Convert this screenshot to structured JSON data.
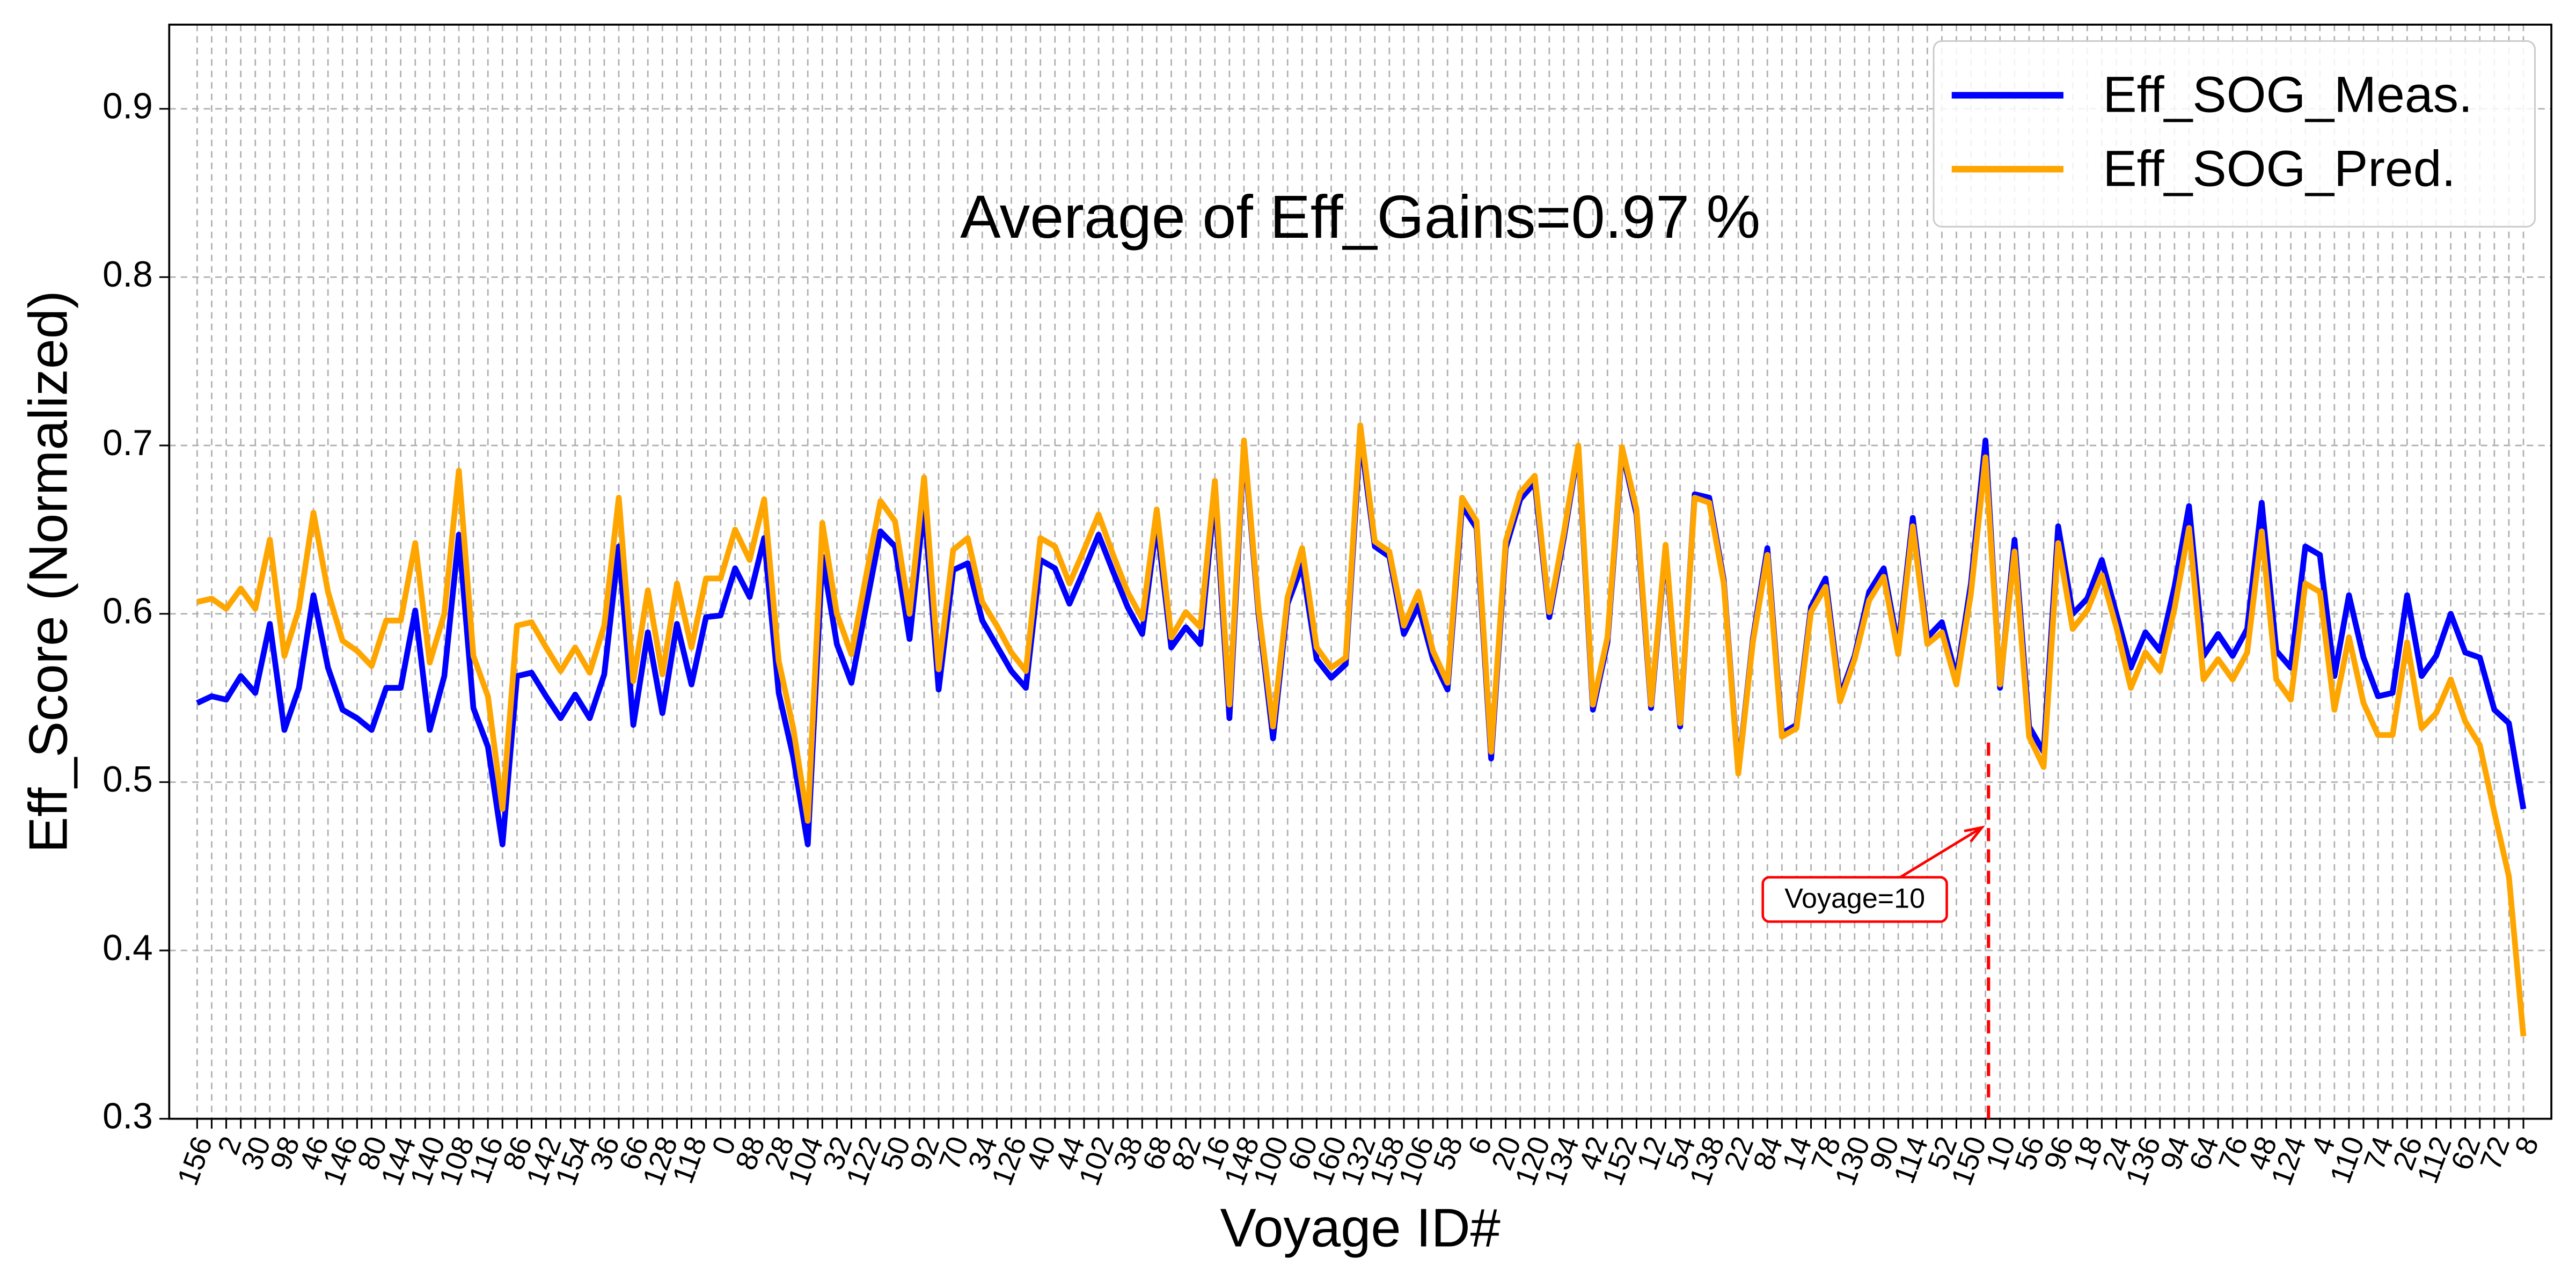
{
  "chart_data": {
    "type": "line",
    "title": "Average of Eff_Gains=0.97 %",
    "x_label": "Voyage ID#",
    "y_label": "Eff_Score (Normalized)",
    "categories": [
      "156",
      null,
      "2",
      null,
      "30",
      null,
      "98",
      null,
      "46",
      null,
      "146",
      null,
      "80",
      null,
      "144",
      null,
      "140",
      null,
      "108",
      null,
      "116",
      null,
      "86",
      null,
      "142",
      null,
      "154",
      null,
      "36",
      null,
      "66",
      null,
      "128",
      null,
      "118",
      null,
      "0",
      null,
      "88",
      null,
      "28",
      null,
      "104",
      null,
      "32",
      null,
      "122",
      null,
      "50",
      null,
      "92",
      null,
      "70",
      null,
      "34",
      null,
      "126",
      null,
      "40",
      null,
      "44",
      null,
      "102",
      null,
      "38",
      null,
      "68",
      null,
      "82",
      null,
      "16",
      null,
      "148",
      null,
      "100",
      null,
      "60",
      null,
      "160",
      null,
      "132",
      null,
      "158",
      null,
      "106",
      null,
      "58",
      null,
      "6",
      null,
      "20",
      null,
      "120",
      null,
      "134",
      null,
      "42",
      null,
      "152",
      null,
      "12",
      null,
      "54",
      null,
      "138",
      null,
      "22",
      null,
      "84",
      null,
      "14",
      null,
      "78",
      null,
      "130",
      null,
      "90",
      null,
      "114",
      null,
      "52",
      null,
      "150",
      null,
      "10",
      null,
      "56",
      null,
      "96",
      null,
      "18",
      null,
      "24",
      null,
      "136",
      null,
      "94",
      null,
      "64",
      null,
      "76",
      null,
      "48",
      null,
      "124",
      null,
      "4",
      null,
      "110",
      null,
      "74",
      null,
      "26",
      null,
      "112",
      null,
      "62",
      null,
      "72",
      null,
      "8"
    ],
    "series": [
      {
        "name": "Eff_SOG_Meas.",
        "color": "#0000ff",
        "values": [
          0.547,
          0.551,
          0.549,
          0.563,
          0.553,
          0.594,
          0.531,
          0.556,
          0.611,
          0.568,
          0.543,
          0.538,
          0.531,
          0.556,
          0.556,
          0.602,
          0.531,
          0.563,
          0.647,
          0.544,
          0.521,
          0.463,
          0.563,
          0.565,
          0.551,
          0.538,
          0.552,
          0.538,
          0.564,
          0.64,
          0.534,
          0.589,
          0.541,
          0.594,
          0.558,
          0.598,
          0.599,
          0.627,
          0.61,
          0.645,
          0.553,
          0.515,
          0.463,
          0.634,
          0.582,
          0.559,
          0.604,
          0.649,
          0.64,
          0.585,
          0.665,
          0.555,
          0.626,
          0.63,
          0.596,
          0.581,
          0.566,
          0.556,
          0.632,
          0.627,
          0.606,
          0.626,
          0.647,
          0.625,
          0.604,
          0.588,
          0.654,
          0.58,
          0.592,
          0.582,
          0.672,
          0.538,
          0.701,
          0.6,
          0.526,
          0.606,
          0.629,
          0.573,
          0.562,
          0.57,
          0.706,
          0.64,
          0.634,
          0.588,
          0.605,
          0.573,
          0.555,
          0.664,
          0.651,
          0.514,
          0.639,
          0.668,
          0.678,
          0.598,
          0.645,
          0.698,
          0.543,
          0.583,
          0.697,
          0.659,
          0.544,
          0.639,
          0.533,
          0.671,
          0.669,
          0.62,
          0.506,
          0.585,
          0.639,
          0.529,
          0.534,
          0.604,
          0.621,
          0.551,
          0.575,
          0.613,
          0.627,
          0.58,
          0.657,
          0.586,
          0.595,
          0.562,
          0.618,
          0.703,
          0.556,
          0.644,
          0.533,
          0.518,
          0.652,
          0.6,
          0.609,
          0.632,
          0.6,
          0.568,
          0.589,
          0.578,
          0.616,
          0.664,
          0.575,
          0.588,
          0.575,
          0.591,
          0.666,
          0.578,
          0.568,
          0.64,
          0.635,
          0.563,
          0.611,
          0.574,
          0.551,
          0.553,
          0.611,
          0.563,
          0.575,
          0.6,
          0.577,
          0.574,
          0.543,
          0.535,
          0.484
        ]
      },
      {
        "name": "Eff_SOG_Pred.",
        "color": "#ffa500",
        "values": [
          0.607,
          0.609,
          0.603,
          0.615,
          0.603,
          0.644,
          0.575,
          0.603,
          0.66,
          0.613,
          0.584,
          0.578,
          0.569,
          0.596,
          0.596,
          0.642,
          0.571,
          0.6,
          0.685,
          0.575,
          0.551,
          0.484,
          0.593,
          0.595,
          0.58,
          0.566,
          0.58,
          0.565,
          0.593,
          0.669,
          0.56,
          0.614,
          0.564,
          0.618,
          0.58,
          0.621,
          0.621,
          0.65,
          0.632,
          0.668,
          0.572,
          0.532,
          0.477,
          0.654,
          0.6,
          0.576,
          0.622,
          0.667,
          0.655,
          0.6,
          0.681,
          0.567,
          0.638,
          0.645,
          0.607,
          0.593,
          0.577,
          0.566,
          0.645,
          0.64,
          0.618,
          0.638,
          0.659,
          0.635,
          0.613,
          0.597,
          0.662,
          0.586,
          0.601,
          0.592,
          0.679,
          0.546,
          0.703,
          0.603,
          0.533,
          0.61,
          0.639,
          0.58,
          0.568,
          0.574,
          0.712,
          0.643,
          0.637,
          0.593,
          0.613,
          0.578,
          0.559,
          0.669,
          0.655,
          0.518,
          0.643,
          0.672,
          0.682,
          0.601,
          0.648,
          0.7,
          0.546,
          0.586,
          0.699,
          0.662,
          0.546,
          0.641,
          0.535,
          0.669,
          0.666,
          0.618,
          0.505,
          0.583,
          0.635,
          0.527,
          0.532,
          0.601,
          0.616,
          0.548,
          0.573,
          0.608,
          0.622,
          0.576,
          0.652,
          0.582,
          0.589,
          0.558,
          0.612,
          0.693,
          0.558,
          0.637,
          0.527,
          0.509,
          0.642,
          0.591,
          0.602,
          0.623,
          0.592,
          0.556,
          0.577,
          0.566,
          0.603,
          0.651,
          0.561,
          0.573,
          0.561,
          0.577,
          0.649,
          0.561,
          0.549,
          0.618,
          0.613,
          0.543,
          0.586,
          0.547,
          0.528,
          0.528,
          0.583,
          0.532,
          0.541,
          0.561,
          0.536,
          0.522,
          0.482,
          0.444,
          0.349
        ]
      }
    ],
    "ylim": [
      0.3,
      0.95
    ],
    "yticks": [
      0.3,
      0.4,
      0.5,
      0.6,
      0.7,
      0.8,
      0.9
    ],
    "grid": true,
    "legend": "upper right",
    "annotation": {
      "text": "Voyage=10",
      "category": "10",
      "arrow_y": 0.475,
      "line_top": 0.525,
      "color": "#ff0000"
    }
  }
}
